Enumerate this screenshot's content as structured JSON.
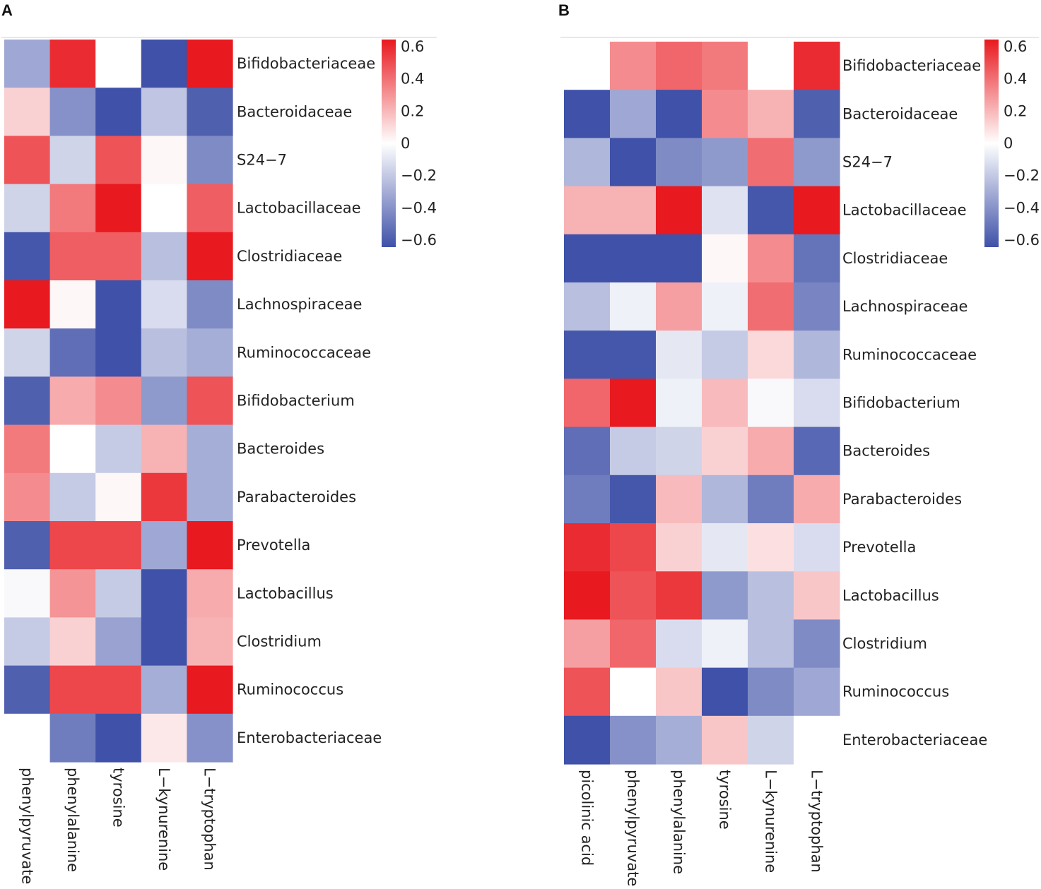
{
  "chart_data": [
    {
      "panel": "A",
      "type": "heatmap",
      "rows": [
        "Bifidobacteriaceae",
        "Bacteroidaceae",
        "S24-7",
        "Lactobacillaceae",
        "Clostridiaceae",
        "Lachnospiraceae",
        "Ruminococcaceae",
        "Bifidobacterium",
        "Bacteroides",
        "Parabacteroides",
        "Prevotella",
        "Lactobacillus",
        "Clostridium",
        "Ruminococcus",
        "Enterobacteriaceae"
      ],
      "row_labels": [
        "Bifidobacteriaceae",
        "Bacteroidaceae",
        "S24−7",
        "Lactobacillaceae",
        "Clostridiaceae",
        "Lachnospiraceae",
        "Ruminococcaceae",
        "Bifidobacterium",
        "Bacteroides",
        "Parabacteroides",
        "Prevotella",
        "Lactobacillus",
        "Clostridium",
        "Ruminococcus",
        "Enterobacteriaceae"
      ],
      "columns": [
        "phenylpyruvate",
        "phenylalanine",
        "tyrosine",
        "L-kynurenine",
        "L-tryptophan"
      ],
      "column_labels": [
        "phenylpyruvate",
        "phenylalanine",
        "tyrosine",
        "L−kynurenine",
        "L−tryptophan"
      ],
      "values": [
        [
          -0.3,
          0.55,
          0.0,
          -0.6,
          0.6
        ],
        [
          0.12,
          -0.38,
          -0.6,
          -0.2,
          -0.55
        ],
        [
          0.45,
          -0.15,
          0.45,
          0.02,
          -0.4
        ],
        [
          -0.15,
          0.35,
          0.62,
          0.0,
          0.42
        ],
        [
          -0.58,
          0.42,
          0.42,
          -0.22,
          0.62
        ],
        [
          0.62,
          0.02,
          -0.6,
          -0.12,
          -0.4
        ],
        [
          -0.15,
          -0.5,
          -0.6,
          -0.22,
          -0.28
        ],
        [
          -0.55,
          0.22,
          0.3,
          -0.35,
          0.45
        ],
        [
          0.35,
          0.0,
          -0.18,
          0.2,
          -0.28
        ],
        [
          0.3,
          -0.18,
          0.02,
          0.52,
          -0.28
        ],
        [
          -0.55,
          0.48,
          0.48,
          -0.3,
          0.62
        ],
        [
          -0.02,
          0.28,
          -0.18,
          -0.6,
          0.22
        ],
        [
          -0.18,
          0.12,
          -0.32,
          -0.6,
          0.2
        ],
        [
          -0.55,
          0.48,
          0.48,
          -0.28,
          0.62
        ],
        [
          0.0,
          -0.45,
          -0.6,
          0.06,
          -0.38
        ]
      ],
      "color_scale": {
        "min": -0.6,
        "max": 0.6,
        "low": "#3f51a8",
        "mid": "#ffffff",
        "high": "#e8191f"
      },
      "colorbar_ticks": [
        "0.6",
        "0.4",
        "0.2",
        "0",
        "−0.2",
        "−0.4",
        "−0.6"
      ]
    },
    {
      "panel": "B",
      "type": "heatmap",
      "rows": [
        "Bifidobacteriaceae",
        "Bacteroidaceae",
        "S24-7",
        "Lactobacillaceae",
        "Clostridiaceae",
        "Lachnospiraceae",
        "Ruminococcaceae",
        "Bifidobacterium",
        "Bacteroides",
        "Parabacteroides",
        "Prevotella",
        "Lactobacillus",
        "Clostridium",
        "Ruminococcus",
        "Enterobacteriaceae"
      ],
      "row_labels": [
        "Bifidobacteriaceae",
        "Bacteroidaceae",
        "S24−7",
        "Lactobacillaceae",
        "Clostridiaceae",
        "Lachnospiraceae",
        "Ruminococcaceae",
        "Bifidobacterium",
        "Bacteroides",
        "Parabacteroides",
        "Prevotella",
        "Lactobacillus",
        "Clostridium",
        "Ruminococcus",
        "Enterobacteriaceae"
      ],
      "columns": [
        "picolinic acid",
        "phenylpyruvate",
        "phenylalanine",
        "tyrosine",
        "L-kynurenine",
        "L-tryptophan"
      ],
      "column_labels": [
        "picolinic acid",
        "phenylpyruvate",
        "phenylalanine",
        "tyrosine",
        "L−kynurenine",
        "L−tryptophan"
      ],
      "values": [
        [
          0.0,
          0.3,
          0.4,
          0.35,
          0.0,
          0.55
        ],
        [
          -0.6,
          -0.3,
          -0.6,
          0.3,
          0.2,
          -0.55
        ],
        [
          -0.25,
          -0.6,
          -0.4,
          -0.35,
          0.38,
          -0.35
        ],
        [
          0.2,
          0.2,
          0.62,
          -0.1,
          -0.58,
          0.62
        ],
        [
          -0.6,
          -0.6,
          -0.6,
          0.02,
          0.3,
          -0.48
        ],
        [
          -0.22,
          -0.05,
          0.25,
          -0.05,
          0.38,
          -0.42
        ],
        [
          -0.58,
          -0.58,
          -0.08,
          -0.18,
          0.1,
          -0.25
        ],
        [
          0.4,
          0.6,
          -0.05,
          0.18,
          -0.02,
          -0.12
        ],
        [
          -0.5,
          -0.18,
          -0.15,
          0.12,
          0.22,
          -0.52
        ],
        [
          -0.45,
          -0.58,
          0.18,
          -0.25,
          -0.45,
          0.22
        ],
        [
          0.55,
          0.48,
          0.12,
          -0.08,
          0.08,
          -0.12
        ],
        [
          0.62,
          0.45,
          0.52,
          -0.35,
          -0.22,
          0.15
        ],
        [
          0.25,
          0.4,
          -0.12,
          -0.05,
          -0.22,
          -0.4
        ],
        [
          0.45,
          0.0,
          0.15,
          -0.6,
          -0.4,
          -0.3
        ],
        [
          -0.6,
          -0.38,
          -0.28,
          0.15,
          -0.15,
          null
        ]
      ],
      "color_scale": {
        "min": -0.6,
        "max": 0.6,
        "low": "#3f51a8",
        "mid": "#ffffff",
        "high": "#e8191f"
      },
      "colorbar_ticks": [
        "0.6",
        "0.4",
        "0.2",
        "0",
        "−0.2",
        "−0.4",
        "−0.6"
      ]
    }
  ]
}
